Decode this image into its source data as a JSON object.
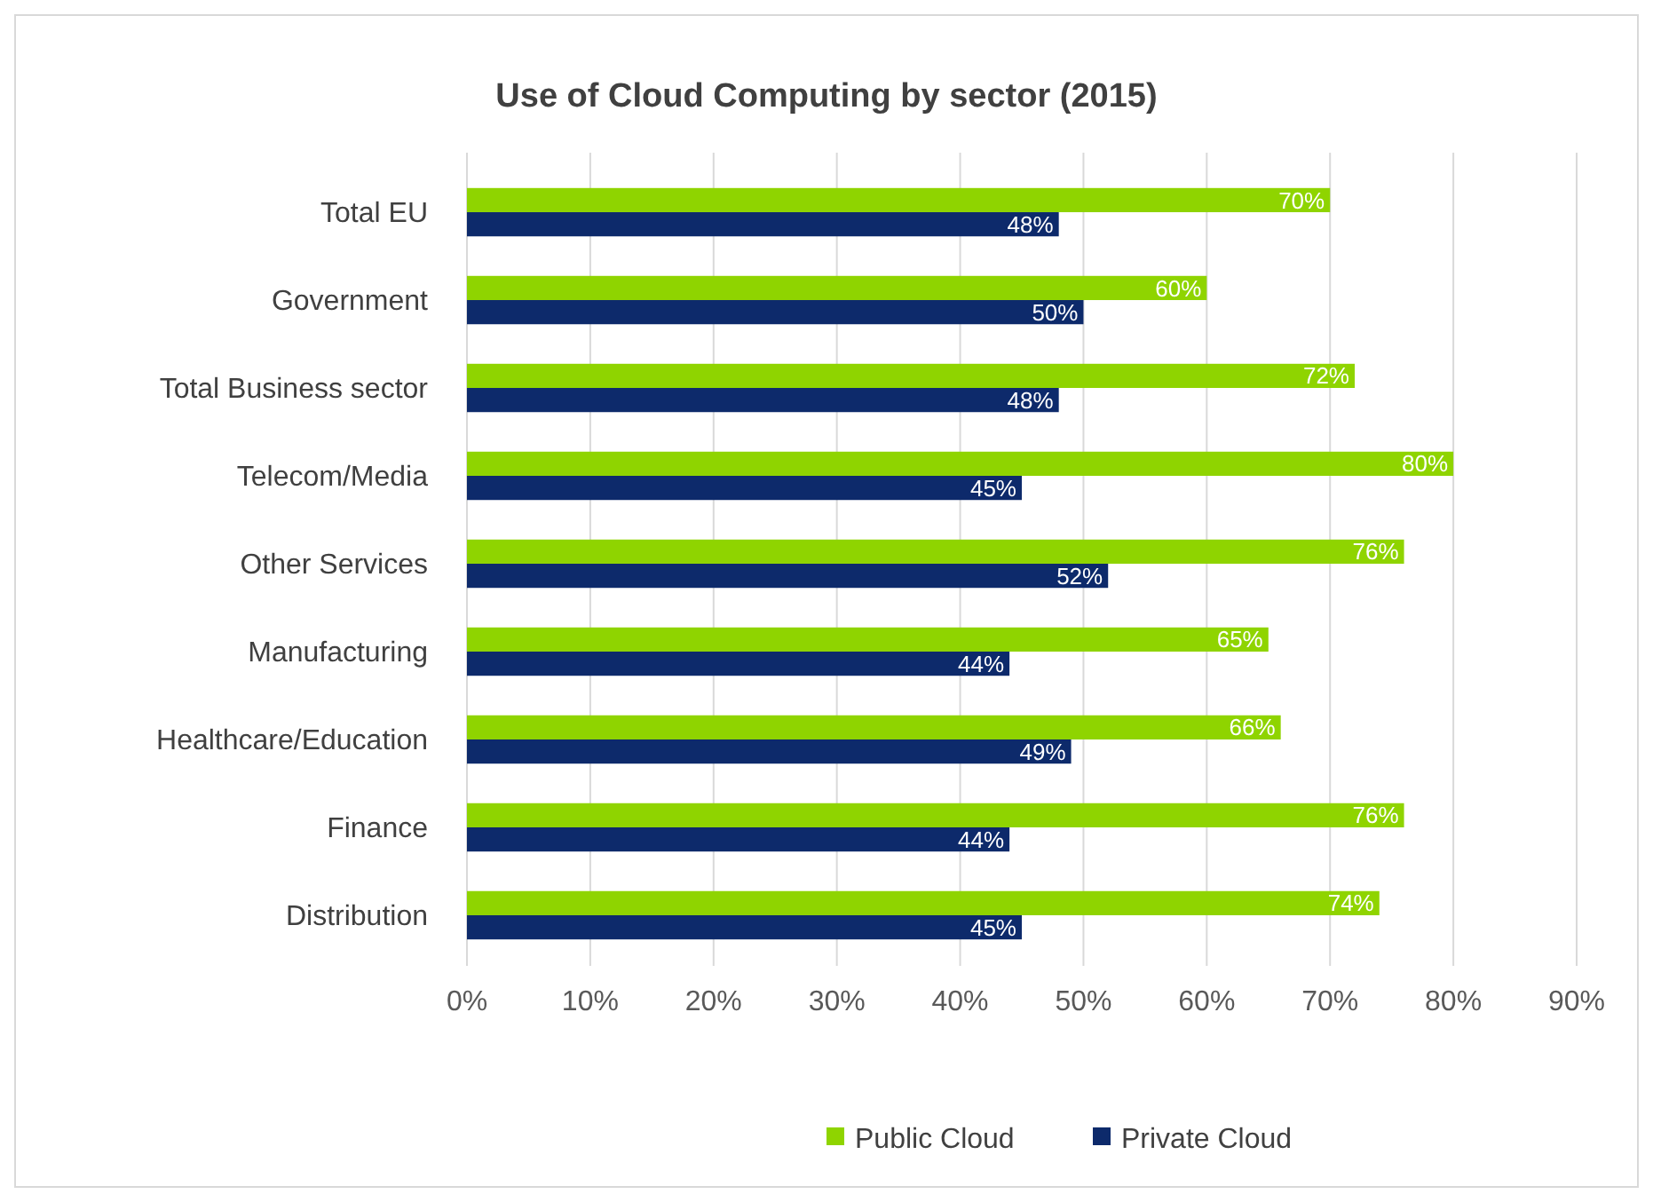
{
  "chart_data": {
    "type": "bar",
    "orientation": "horizontal",
    "title": "Use of Cloud Computing by sector (2015)",
    "categories": [
      "Total EU",
      "Government",
      "Total Business sector",
      "Telecom/Media",
      "Other Services",
      "Manufacturing",
      "Healthcare/Education",
      "Finance",
      "Distribution"
    ],
    "series": [
      {
        "name": "Public Cloud",
        "color": "#8fd400",
        "values": [
          70,
          60,
          72,
          80,
          76,
          65,
          66,
          76,
          74
        ],
        "value_labels": [
          "70%",
          "60%",
          "72%",
          "80%",
          "76%",
          "65%",
          "66%",
          "76%",
          "74%"
        ]
      },
      {
        "name": "Private Cloud",
        "color": "#0d2a6b",
        "values": [
          48,
          50,
          48,
          45,
          52,
          44,
          49,
          44,
          45
        ],
        "value_labels": [
          "48%",
          "50%",
          "48%",
          "45%",
          "52%",
          "44%",
          "49%",
          "44%",
          "45%"
        ]
      }
    ],
    "xlim": [
      0,
      90
    ],
    "xticks": [
      {
        "value": 0,
        "label": "0%"
      },
      {
        "value": 10,
        "label": "10%"
      },
      {
        "value": 20,
        "label": "20%"
      },
      {
        "value": 30,
        "label": "30%"
      },
      {
        "value": 40,
        "label": "40%"
      },
      {
        "value": 50,
        "label": "50%"
      },
      {
        "value": 60,
        "label": "60%"
      },
      {
        "value": 70,
        "label": "70%"
      },
      {
        "value": 80,
        "label": "80%"
      },
      {
        "value": 90,
        "label": "90%"
      }
    ],
    "grid": "x",
    "legend": "bottom"
  }
}
